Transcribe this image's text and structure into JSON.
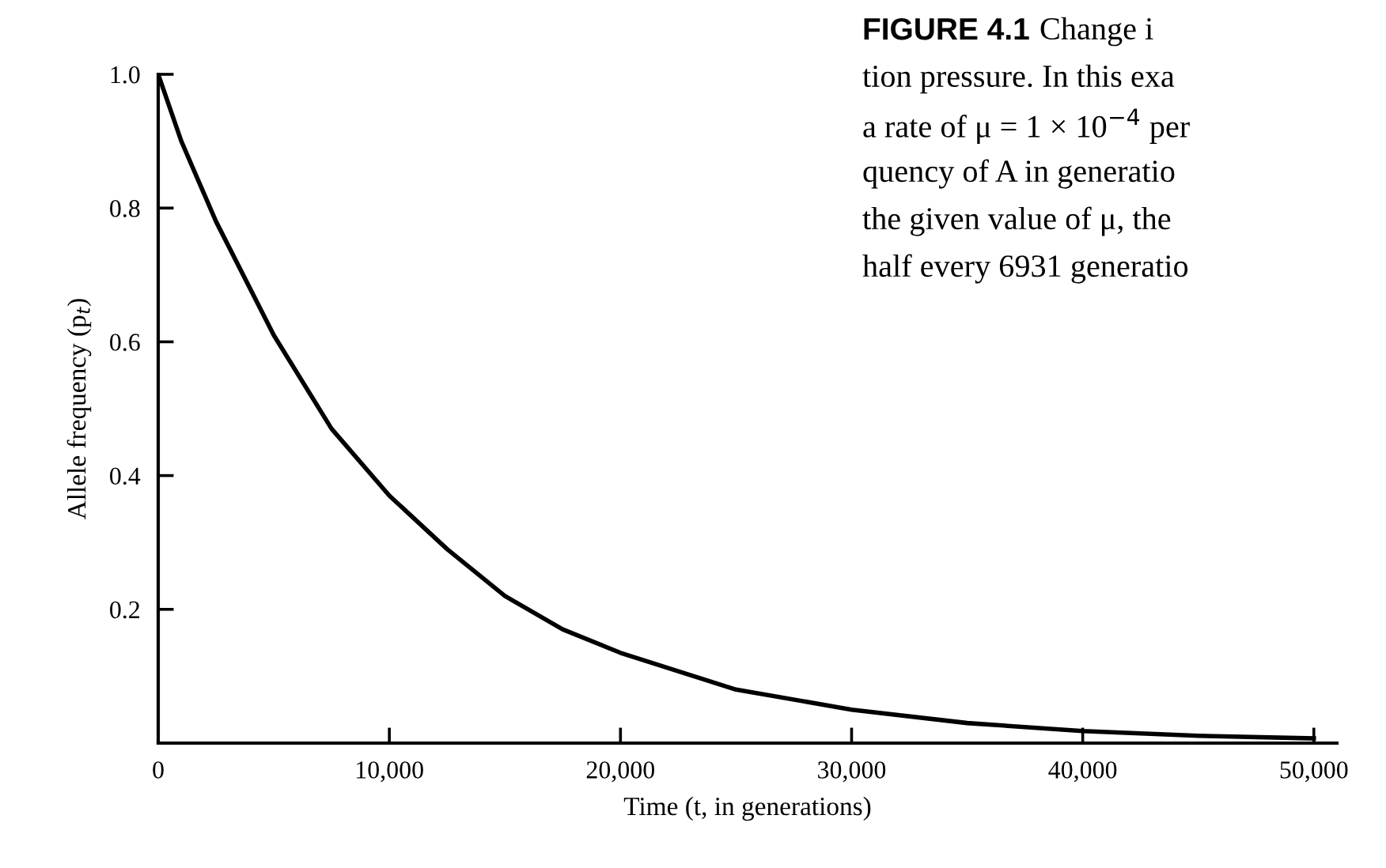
{
  "chart_data": {
    "type": "line",
    "xlabel": "Time (t, in generations)",
    "ylabel": "Allele frequency (p$_{t}$)",
    "x": [
      0,
      1000,
      2500,
      5000,
      7500,
      10000,
      12500,
      15000,
      17500,
      20000,
      25000,
      30000,
      35000,
      40000,
      45000,
      50000
    ],
    "series": [
      {
        "color": "#000000",
        "values": [
          1.0,
          0.9,
          0.78,
          0.61,
          0.47,
          0.37,
          0.29,
          0.22,
          0.17,
          0.135,
          0.08,
          0.05,
          0.03,
          0.018,
          0.011,
          0.007
        ]
      }
    ],
    "xlim": [
      0,
      51000
    ],
    "ylim": [
      0,
      1.0
    ],
    "xticks": [
      0,
      {
        "value": 10000,
        "label": "10,000"
      },
      {
        "value": 20000,
        "label": "20,000"
      },
      {
        "value": 30000,
        "label": "30,000"
      },
      {
        "value": 40000,
        "label": "40,000"
      },
      {
        "value": 50000,
        "label": "50,000"
      }
    ],
    "yticks": [
      {
        "value": 0,
        "label": null
      },
      0.2,
      0.4,
      0.6,
      0.8,
      {
        "value": 1.0,
        "label": "1.0"
      }
    ],
    "grid": false,
    "legend": false,
    "marker": "none",
    "line_style": "solid",
    "annotations": [
      "FIGURE 4.1",
      "Change i",
      "tion pressure. In this exa",
      "a rate of μ = 1 × 10$^{−4}$ per",
      "quency of A in generatio",
      "the given value of μ, the",
      "half every 6931 generatio"
    ]
  }
}
